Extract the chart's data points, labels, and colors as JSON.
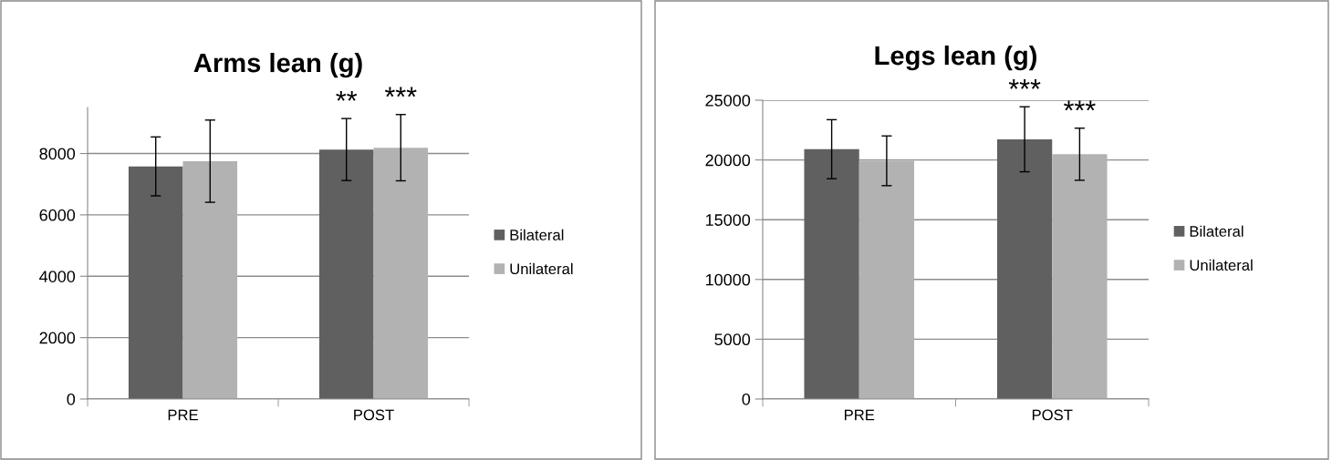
{
  "chart_data": [
    {
      "type": "bar",
      "title": "Arms lean (g)",
      "categories": [
        "PRE",
        "POST"
      ],
      "series": [
        {
          "name": "Bilateral",
          "color": "#606060",
          "values": [
            7580,
            8130
          ],
          "errors": [
            960,
            1010
          ]
        },
        {
          "name": "Unilateral",
          "color": "#b2b2b2",
          "values": [
            7750,
            8190
          ],
          "errors": [
            1340,
            1080
          ]
        }
      ],
      "ylim": [
        0,
        9500
      ],
      "yticks": [
        0,
        2000,
        4000,
        6000,
        8000
      ],
      "grid": "y",
      "legend": "right",
      "annotations": [
        "**",
        "***"
      ]
    },
    {
      "type": "bar",
      "title": "Legs lean (g)",
      "categories": [
        "PRE",
        "POST"
      ],
      "series": [
        {
          "name": "Bilateral",
          "color": "#606060",
          "values": [
            20900,
            21730
          ],
          "errors": [
            2470,
            2720
          ]
        },
        {
          "name": "Unilateral",
          "color": "#b2b2b2",
          "values": [
            19930,
            20480
          ],
          "errors": [
            2080,
            2180
          ]
        }
      ],
      "ylim": [
        0,
        25000
      ],
      "yticks": [
        0,
        5000,
        10000,
        15000,
        20000,
        25000
      ],
      "grid": "y",
      "legend": "right",
      "annotations": [
        "***",
        "***"
      ]
    }
  ]
}
